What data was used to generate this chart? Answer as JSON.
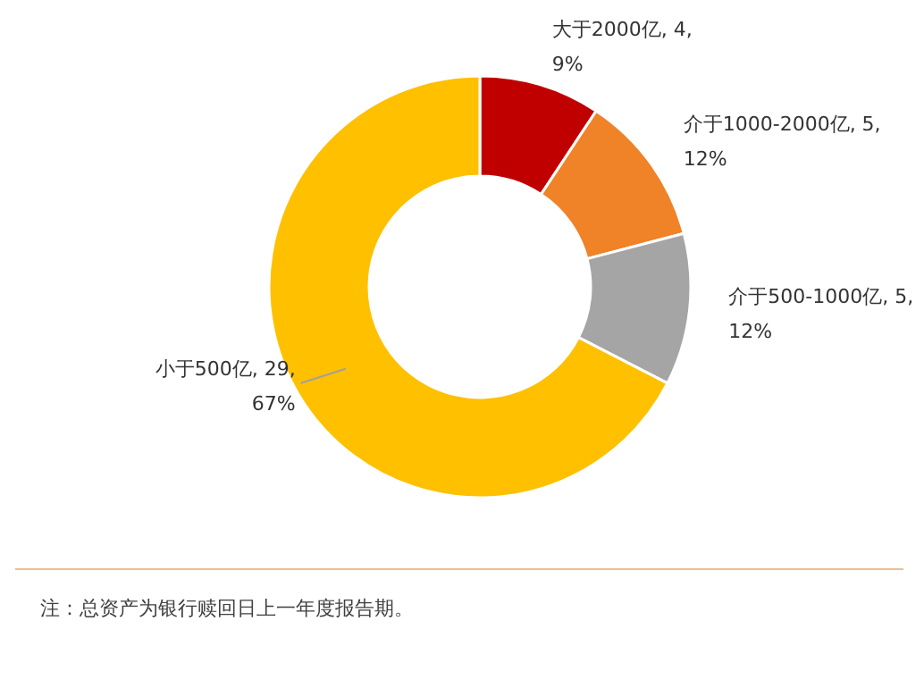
{
  "chart_data": {
    "type": "donut",
    "categories": [
      "大于2000亿",
      "介于1000-2000亿",
      "介于500-1000亿",
      "小于500亿"
    ],
    "values": [
      4,
      5,
      5,
      29
    ],
    "colors": [
      "#c00000",
      "#f08228",
      "#a5a5a5",
      "#ffc000"
    ],
    "value_labels": [
      "4, 9%",
      "5, 12%",
      "5, 12%",
      "29, 67%"
    ],
    "annotations": [
      "注：总资产为银行赎回日上一年度报告期。"
    ]
  }
}
